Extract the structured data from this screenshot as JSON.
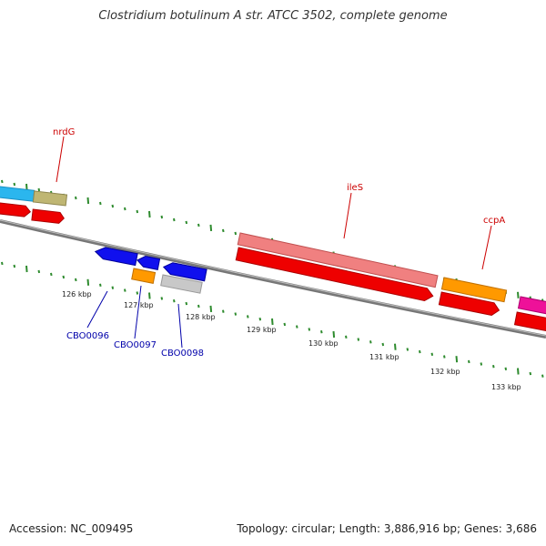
{
  "title": "Clostridium botulinum A str. ATCC 3502, complete genome",
  "footer": {
    "accession": "Accession: NC_009495",
    "topology": "Topology: circular; Length: 3,886,916 bp; Genes: 3,686"
  },
  "colors": {
    "backbone": "#7a7a7a",
    "tick_green": "#2e8b2e",
    "gene_label_top": "#cc0000",
    "gene_label_bottom": "#0000aa",
    "tick_label": "#222222"
  },
  "genes": [
    {
      "name": "nrdG",
      "kind": "top-label"
    },
    {
      "name": "ileS",
      "kind": "top-label"
    },
    {
      "name": "ccpA",
      "kind": "top-label"
    },
    {
      "name": "CBO0096",
      "kind": "bottom-label"
    },
    {
      "name": "CBO0097",
      "kind": "bottom-label"
    },
    {
      "name": "CBO0098",
      "kind": "bottom-label"
    }
  ],
  "scale_labels": [
    "126 kbp",
    "127 kbp",
    "128 kbp",
    "129 kbp",
    "130 kbp",
    "131 kbp",
    "132 kbp",
    "133 kbp"
  ]
}
